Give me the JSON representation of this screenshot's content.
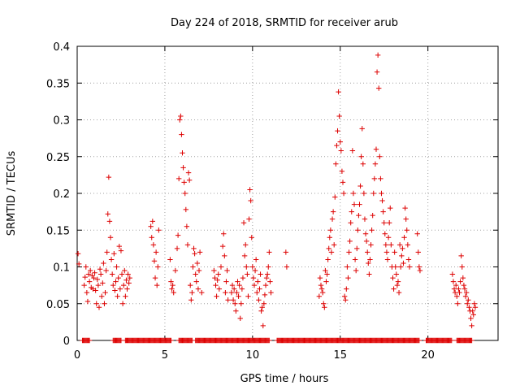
{
  "chart_data": {
    "type": "scatter",
    "title": "Day 224 of 2018, SRMTID for receiver arub",
    "xlabel": "GPS time / hours",
    "ylabel": "SRMTID / TECUs",
    "xlim": [
      0,
      24
    ],
    "ylim": [
      0,
      0.4
    ],
    "x_ticks": [
      0,
      5,
      10,
      15,
      20
    ],
    "x_tick_labels": [
      "0",
      "5",
      "10",
      "15",
      "20"
    ],
    "y_ticks": [
      0,
      0.05,
      0.1,
      0.15,
      0.2,
      0.25,
      0.3,
      0.35,
      0.4
    ],
    "y_tick_labels": [
      "0",
      "0.05",
      "0.1",
      "0.15",
      "0.2",
      "0.25",
      "0.3",
      "0.35",
      "0.4"
    ],
    "grid": true,
    "marker": "+",
    "colors": {
      "points": "#dd0000",
      "grid": "#a0a0a0",
      "axis": "#000000"
    },
    "series": [
      {
        "name": "SRMTID",
        "points": [
          [
            0.05,
            0.118
          ],
          [
            0.1,
            0.104
          ],
          [
            0.4,
            0.075
          ],
          [
            0.45,
            0.086
          ],
          [
            0.5,
            0.1
          ],
          [
            0.55,
            0.065
          ],
          [
            0.6,
            0.053
          ],
          [
            0.65,
            0.09
          ],
          [
            0.7,
            0.08
          ],
          [
            0.75,
            0.095
          ],
          [
            0.8,
            0.072
          ],
          [
            0.85,
            0.088
          ],
          [
            0.9,
            0.07
          ],
          [
            0.95,
            0.085
          ],
          [
            1.0,
            0.092
          ],
          [
            1.05,
            0.068
          ],
          [
            1.1,
            0.05
          ],
          [
            1.15,
            0.083
          ],
          [
            1.2,
            0.075
          ],
          [
            1.25,
            0.045
          ],
          [
            1.3,
            0.097
          ],
          [
            1.35,
            0.09
          ],
          [
            1.4,
            0.06
          ],
          [
            1.45,
            0.078
          ],
          [
            1.5,
            0.105
          ],
          [
            1.55,
            0.05
          ],
          [
            1.6,
            0.065
          ],
          [
            1.65,
            0.095
          ],
          [
            1.7,
            0.12
          ],
          [
            1.75,
            0.172
          ],
          [
            1.8,
            0.222
          ],
          [
            1.85,
            0.162
          ],
          [
            1.9,
            0.14
          ],
          [
            1.95,
            0.11
          ],
          [
            2.0,
            0.09
          ],
          [
            2.05,
            0.075
          ],
          [
            2.1,
            0.118
          ],
          [
            2.15,
            0.068
          ],
          [
            2.2,
            0.08
          ],
          [
            2.25,
            0.1
          ],
          [
            2.3,
            0.06
          ],
          [
            2.35,
            0.085
          ],
          [
            2.4,
            0.128
          ],
          [
            2.45,
            0.07
          ],
          [
            2.5,
            0.122
          ],
          [
            2.55,
            0.09
          ],
          [
            2.6,
            0.05
          ],
          [
            2.65,
            0.075
          ],
          [
            2.7,
            0.095
          ],
          [
            2.75,
            0.06
          ],
          [
            2.8,
            0.082
          ],
          [
            2.85,
            0.07
          ],
          [
            2.9,
            0.09
          ],
          [
            2.95,
            0.078
          ],
          [
            3.0,
            0.085
          ],
          [
            4.2,
            0.155
          ],
          [
            4.25,
            0.14
          ],
          [
            4.3,
            0.162
          ],
          [
            4.35,
            0.13
          ],
          [
            4.4,
            0.108
          ],
          [
            4.45,
            0.085
          ],
          [
            4.5,
            0.12
          ],
          [
            4.55,
            0.075
          ],
          [
            4.6,
            0.1
          ],
          [
            4.65,
            0.15
          ],
          [
            5.3,
            0.11
          ],
          [
            5.35,
            0.08
          ],
          [
            5.4,
            0.07
          ],
          [
            5.45,
            0.075
          ],
          [
            5.5,
            0.065
          ],
          [
            5.6,
            0.095
          ],
          [
            5.7,
            0.125
          ],
          [
            5.75,
            0.143
          ],
          [
            5.8,
            0.22
          ],
          [
            5.85,
            0.3
          ],
          [
            5.9,
            0.305
          ],
          [
            5.95,
            0.28
          ],
          [
            6.0,
            0.255
          ],
          [
            6.05,
            0.235
          ],
          [
            6.1,
            0.215
          ],
          [
            6.15,
            0.2
          ],
          [
            6.2,
            0.178
          ],
          [
            6.25,
            0.155
          ],
          [
            6.3,
            0.13
          ],
          [
            6.35,
            0.228
          ],
          [
            6.4,
            0.218
          ],
          [
            6.45,
            0.075
          ],
          [
            6.5,
            0.055
          ],
          [
            6.55,
            0.065
          ],
          [
            6.6,
            0.1
          ],
          [
            6.65,
            0.125
          ],
          [
            6.7,
            0.118
          ],
          [
            6.75,
            0.09
          ],
          [
            6.8,
            0.08
          ],
          [
            6.85,
            0.105
          ],
          [
            6.9,
            0.07
          ],
          [
            6.95,
            0.095
          ],
          [
            7.0,
            0.12
          ],
          [
            7.1,
            0.065
          ],
          [
            7.8,
            0.095
          ],
          [
            7.85,
            0.085
          ],
          [
            7.9,
            0.075
          ],
          [
            7.95,
            0.06
          ],
          [
            8.0,
            0.082
          ],
          [
            8.05,
            0.09
          ],
          [
            8.1,
            0.07
          ],
          [
            8.2,
            0.1
          ],
          [
            8.3,
            0.128
          ],
          [
            8.35,
            0.145
          ],
          [
            8.4,
            0.115
          ],
          [
            8.45,
            0.065
          ],
          [
            8.5,
            0.08
          ],
          [
            8.55,
            0.095
          ],
          [
            8.6,
            0.055
          ],
          [
            8.8,
            0.065
          ],
          [
            8.85,
            0.075
          ],
          [
            8.9,
            0.055
          ],
          [
            8.95,
            0.07
          ],
          [
            9.0,
            0.05
          ],
          [
            9.05,
            0.04
          ],
          [
            9.1,
            0.065
          ],
          [
            9.15,
            0.08
          ],
          [
            9.2,
            0.06
          ],
          [
            9.25,
            0.075
          ],
          [
            9.3,
            0.03
          ],
          [
            9.35,
            0.05
          ],
          [
            9.4,
            0.07
          ],
          [
            9.45,
            0.085
          ],
          [
            9.5,
            0.16
          ],
          [
            9.55,
            0.115
          ],
          [
            9.6,
            0.13
          ],
          [
            9.65,
            0.1
          ],
          [
            9.7,
            0.09
          ],
          [
            9.75,
            0.06
          ],
          [
            9.8,
            0.165
          ],
          [
            9.85,
            0.205
          ],
          [
            9.9,
            0.19
          ],
          [
            9.95,
            0.14
          ],
          [
            10.0,
            0.1
          ],
          [
            10.05,
            0.085
          ],
          [
            10.1,
            0.075
          ],
          [
            10.15,
            0.095
          ],
          [
            10.2,
            0.11
          ],
          [
            10.25,
            0.065
          ],
          [
            10.3,
            0.08
          ],
          [
            10.35,
            0.055
          ],
          [
            10.4,
            0.07
          ],
          [
            10.45,
            0.09
          ],
          [
            10.5,
            0.04
          ],
          [
            10.55,
            0.045
          ],
          [
            10.6,
            0.02
          ],
          [
            10.65,
            0.05
          ],
          [
            10.7,
            0.062
          ],
          [
            10.75,
            0.075
          ],
          [
            10.8,
            0.085
          ],
          [
            10.85,
            0.09
          ],
          [
            10.9,
            0.1
          ],
          [
            10.95,
            0.12
          ],
          [
            11.0,
            0.08
          ],
          [
            11.05,
            0.065
          ],
          [
            11.9,
            0.12
          ],
          [
            11.95,
            0.1
          ],
          [
            13.8,
            0.06
          ],
          [
            13.85,
            0.085
          ],
          [
            13.9,
            0.075
          ],
          [
            13.95,
            0.07
          ],
          [
            14.0,
            0.065
          ],
          [
            14.05,
            0.05
          ],
          [
            14.1,
            0.045
          ],
          [
            14.15,
            0.095
          ],
          [
            14.2,
            0.08
          ],
          [
            14.25,
            0.09
          ],
          [
            14.3,
            0.11
          ],
          [
            14.35,
            0.125
          ],
          [
            14.4,
            0.14
          ],
          [
            14.45,
            0.15
          ],
          [
            14.5,
            0.12
          ],
          [
            14.55,
            0.165
          ],
          [
            14.6,
            0.175
          ],
          [
            14.65,
            0.13
          ],
          [
            14.7,
            0.195
          ],
          [
            14.75,
            0.24
          ],
          [
            14.8,
            0.265
          ],
          [
            14.85,
            0.285
          ],
          [
            14.9,
            0.338
          ],
          [
            14.95,
            0.305
          ],
          [
            15.0,
            0.27
          ],
          [
            15.05,
            0.258
          ],
          [
            15.1,
            0.23
          ],
          [
            15.15,
            0.215
          ],
          [
            15.2,
            0.2
          ],
          [
            15.25,
            0.06
          ],
          [
            15.3,
            0.055
          ],
          [
            15.35,
            0.07
          ],
          [
            15.4,
            0.1
          ],
          [
            15.45,
            0.085
          ],
          [
            15.5,
            0.12
          ],
          [
            15.55,
            0.135
          ],
          [
            15.6,
            0.16
          ],
          [
            15.65,
            0.175
          ],
          [
            15.7,
            0.258
          ],
          [
            15.75,
            0.2
          ],
          [
            15.8,
            0.185
          ],
          [
            15.85,
            0.11
          ],
          [
            15.9,
            0.095
          ],
          [
            15.95,
            0.125
          ],
          [
            16.0,
            0.15
          ],
          [
            16.05,
            0.17
          ],
          [
            16.1,
            0.185
          ],
          [
            16.15,
            0.21
          ],
          [
            16.2,
            0.25
          ],
          [
            16.25,
            0.288
          ],
          [
            16.3,
            0.24
          ],
          [
            16.35,
            0.2
          ],
          [
            16.4,
            0.165
          ],
          [
            16.45,
            0.145
          ],
          [
            16.5,
            0.135
          ],
          [
            16.55,
            0.12
          ],
          [
            16.6,
            0.105
          ],
          [
            16.65,
            0.09
          ],
          [
            16.7,
            0.11
          ],
          [
            16.75,
            0.13
          ],
          [
            16.8,
            0.15
          ],
          [
            16.85,
            0.17
          ],
          [
            16.9,
            0.2
          ],
          [
            16.95,
            0.22
          ],
          [
            17.0,
            0.24
          ],
          [
            17.05,
            0.26
          ],
          [
            17.1,
            0.365
          ],
          [
            17.15,
            0.388
          ],
          [
            17.2,
            0.343
          ],
          [
            17.25,
            0.25
          ],
          [
            17.3,
            0.22
          ],
          [
            17.35,
            0.2
          ],
          [
            17.4,
            0.19
          ],
          [
            17.45,
            0.175
          ],
          [
            17.5,
            0.16
          ],
          [
            17.55,
            0.145
          ],
          [
            17.6,
            0.13
          ],
          [
            17.65,
            0.12
          ],
          [
            17.7,
            0.11
          ],
          [
            17.75,
            0.14
          ],
          [
            17.8,
            0.16
          ],
          [
            17.85,
            0.18
          ],
          [
            17.9,
            0.13
          ],
          [
            17.95,
            0.1
          ],
          [
            18.0,
            0.085
          ],
          [
            18.05,
            0.07
          ],
          [
            18.1,
            0.12
          ],
          [
            18.15,
            0.1
          ],
          [
            18.2,
            0.09
          ],
          [
            18.25,
            0.075
          ],
          [
            18.3,
            0.08
          ],
          [
            18.35,
            0.065
          ],
          [
            18.4,
            0.13
          ],
          [
            18.45,
            0.1
          ],
          [
            18.5,
            0.115
          ],
          [
            18.55,
            0.125
          ],
          [
            18.6,
            0.105
          ],
          [
            18.65,
            0.14
          ],
          [
            18.7,
            0.18
          ],
          [
            18.75,
            0.165
          ],
          [
            18.8,
            0.15
          ],
          [
            18.85,
            0.13
          ],
          [
            18.9,
            0.11
          ],
          [
            18.95,
            0.1
          ],
          [
            19.4,
            0.145
          ],
          [
            19.45,
            0.12
          ],
          [
            19.5,
            0.1
          ],
          [
            19.55,
            0.095
          ],
          [
            21.4,
            0.09
          ],
          [
            21.45,
            0.08
          ],
          [
            21.5,
            0.07
          ],
          [
            21.55,
            0.065
          ],
          [
            21.6,
            0.075
          ],
          [
            21.65,
            0.06
          ],
          [
            21.7,
            0.05
          ],
          [
            21.75,
            0.07
          ],
          [
            21.8,
            0.065
          ],
          [
            21.85,
            0.08
          ],
          [
            21.9,
            0.115
          ],
          [
            21.95,
            0.1
          ],
          [
            22.0,
            0.085
          ],
          [
            22.05,
            0.075
          ],
          [
            22.1,
            0.07
          ],
          [
            22.15,
            0.06
          ],
          [
            22.2,
            0.065
          ],
          [
            22.25,
            0.05
          ],
          [
            22.3,
            0.055
          ],
          [
            22.35,
            0.045
          ],
          [
            22.4,
            0.04
          ],
          [
            22.45,
            0.03
          ],
          [
            22.5,
            0.02
          ],
          [
            22.55,
            0.04
          ],
          [
            22.6,
            0.035
          ],
          [
            22.65,
            0.05
          ],
          [
            22.7,
            0.045
          ]
        ],
        "zero_intervals": [
          [
            0.3,
            0.7
          ],
          [
            2.05,
            2.5
          ],
          [
            2.75,
            5.35
          ],
          [
            5.8,
            6.55
          ],
          [
            6.75,
            10.95
          ],
          [
            11.4,
            19.5
          ],
          [
            19.9,
            21.35
          ],
          [
            21.65,
            22.5
          ]
        ]
      }
    ]
  }
}
